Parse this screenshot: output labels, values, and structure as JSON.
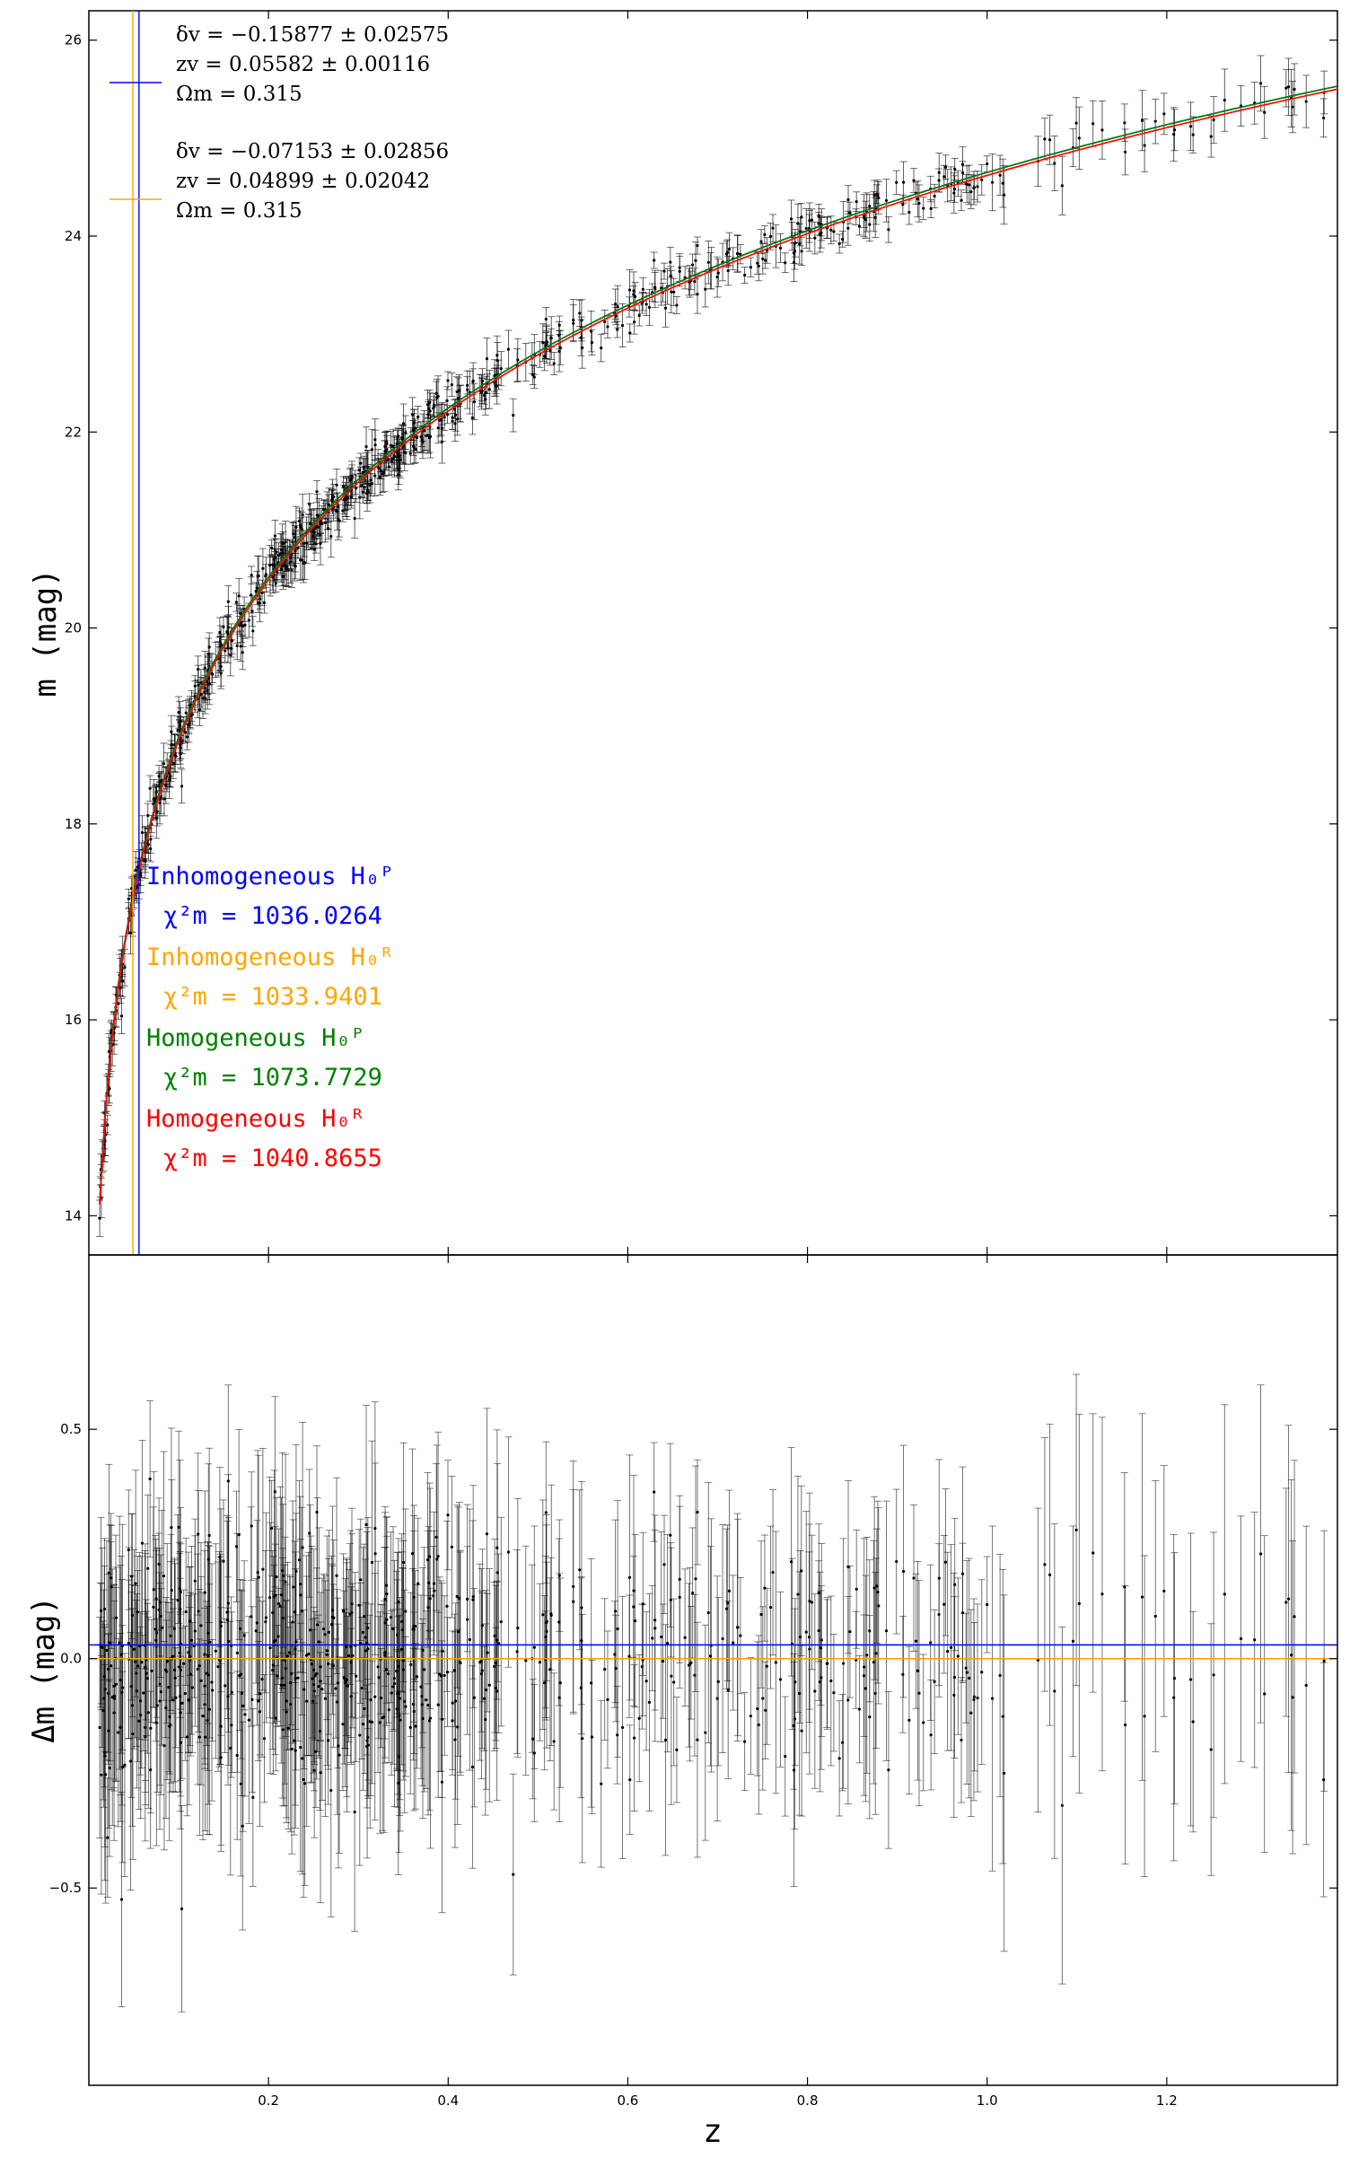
{
  "chart_data": [
    {
      "type": "scatter",
      "panel": "top",
      "xlim": [
        0.0,
        1.39
      ],
      "ylim": [
        13.6,
        26.3
      ],
      "yticks": [
        14,
        16,
        18,
        20,
        22,
        24,
        26
      ],
      "ylabel": "m  (mag)",
      "grid": false,
      "scatter_series": {
        "name": "",
        "color": "#000000",
        "approx_count": 740,
        "errorbars": true
      },
      "vertical_lines": [
        {
          "z": 0.05582,
          "color": "#0000ff"
        },
        {
          "z": 0.04899,
          "color": "#ffa500"
        }
      ],
      "fit_curves": [
        {
          "name": "Inhomogeneous H0P",
          "color": "#0000ff"
        },
        {
          "name": "Inhomogeneous H0R",
          "color": "#ffa500"
        },
        {
          "name": "Homogeneous H0P",
          "color": "#008000"
        },
        {
          "name": "Homogeneous H0R",
          "color": "#ff0000"
        }
      ],
      "legend_fit_params": [
        {
          "color": "#0000ff",
          "lines": [
            "δv = −0.15877 ± 0.02575",
            "zv = 0.05582 ± 0.00116",
            "Ωm = 0.315"
          ]
        },
        {
          "color": "#ffa500",
          "lines": [
            "δv = −0.07153 ± 0.02856",
            "zv = 0.04899 ± 0.02042",
            "Ωm = 0.315"
          ]
        }
      ],
      "model_annotations": [
        {
          "label": "Inhomogeneous H₀ᴾ",
          "chi2": "χ²m = 1036.0264",
          "color": "#0000ff"
        },
        {
          "label": "Inhomogeneous H₀ᴿ",
          "chi2": "χ²m = 1033.9401",
          "color": "#ffa500"
        },
        {
          "label": "Homogeneous H₀ᴾ",
          "chi2": "χ²m = 1073.7729",
          "color": "#008000"
        },
        {
          "label": "Homogeneous H₀ᴿ",
          "chi2": "χ²m = 1040.8655",
          "color": "#ff0000"
        }
      ]
    },
    {
      "type": "scatter",
      "panel": "bottom",
      "xlim": [
        0.0,
        1.39
      ],
      "ylim": [
        -0.93,
        0.88
      ],
      "xticks": [
        0.2,
        0.4,
        0.6,
        0.8,
        1.0,
        1.2
      ],
      "yticks": [
        -0.5,
        0.0,
        0.5
      ],
      "xlabel": "z",
      "ylabel": "Δm  (mag)",
      "grid": false,
      "residual_reference_lines": [
        {
          "name": "Homogeneous H0P",
          "color": "#008000",
          "value": 0.03
        },
        {
          "name": "Homogeneous H0R",
          "color": "#ff0000",
          "value": 0.0
        },
        {
          "name": "Inhomogeneous H0P",
          "color": "#0000ff",
          "value": 0.03
        },
        {
          "name": "Inhomogeneous H0R",
          "color": "#ffa500",
          "value": 0.0
        }
      ]
    }
  ]
}
